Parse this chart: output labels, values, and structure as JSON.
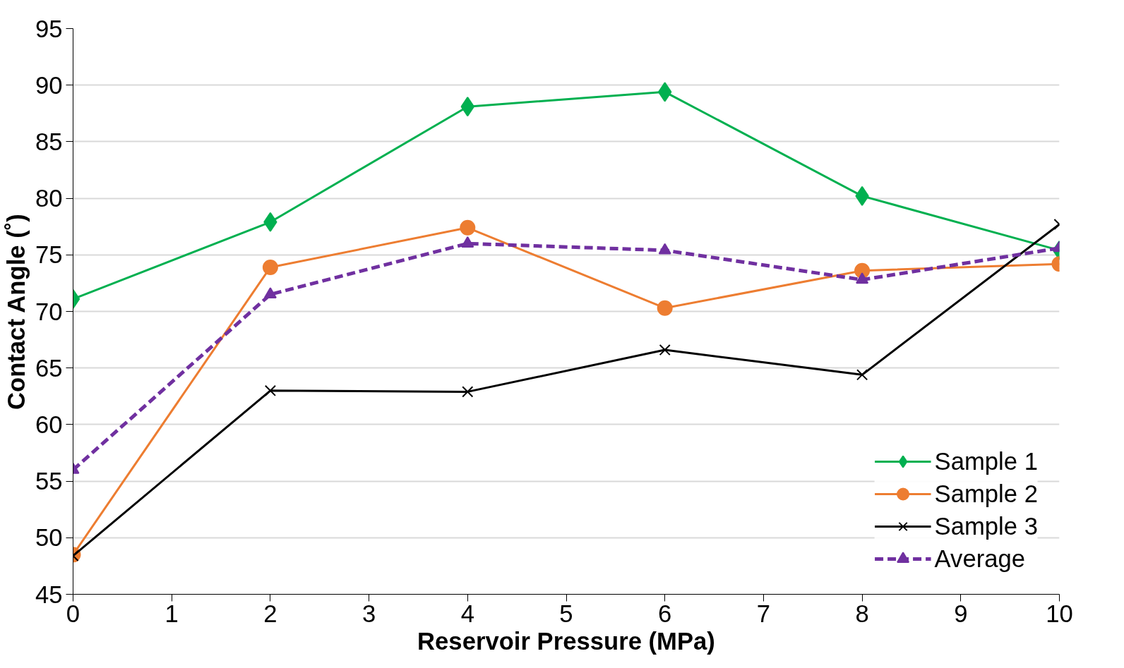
{
  "chart_data": {
    "type": "line",
    "xlabel": "Reservoir Pressure (MPa)",
    "ylabel": "Contact Angle (˚)",
    "x": [
      0,
      2,
      4,
      6,
      8,
      10
    ],
    "series": [
      {
        "name": "Sample 1",
        "color": "#00b050",
        "marker": "diamond",
        "line_style": "solid",
        "values": [
          71.1,
          77.9,
          88.1,
          89.4,
          80.2,
          75.4
        ]
      },
      {
        "name": "Sample 2",
        "color": "#ed7d31",
        "marker": "circle",
        "line_style": "solid",
        "values": [
          48.5,
          73.9,
          77.4,
          70.3,
          73.6,
          74.2
        ]
      },
      {
        "name": "Sample 3",
        "color": "#000000",
        "marker": "cross",
        "line_style": "solid",
        "values": [
          48.4,
          63.0,
          62.9,
          66.6,
          64.4,
          77.7
        ]
      },
      {
        "name": "Average",
        "color": "#7030a0",
        "marker": "triangle",
        "line_style": "dashed",
        "values": [
          56.0,
          71.5,
          76.0,
          75.4,
          72.8,
          75.6
        ]
      }
    ],
    "xlim": [
      0,
      10
    ],
    "xticks": [
      0,
      1,
      2,
      3,
      4,
      5,
      6,
      7,
      8,
      9,
      10
    ],
    "ylim": [
      45,
      95
    ],
    "yticks": [
      45,
      50,
      55,
      60,
      65,
      70,
      75,
      80,
      85,
      90,
      95
    ],
    "grid": "y",
    "legend": "bottom right"
  }
}
